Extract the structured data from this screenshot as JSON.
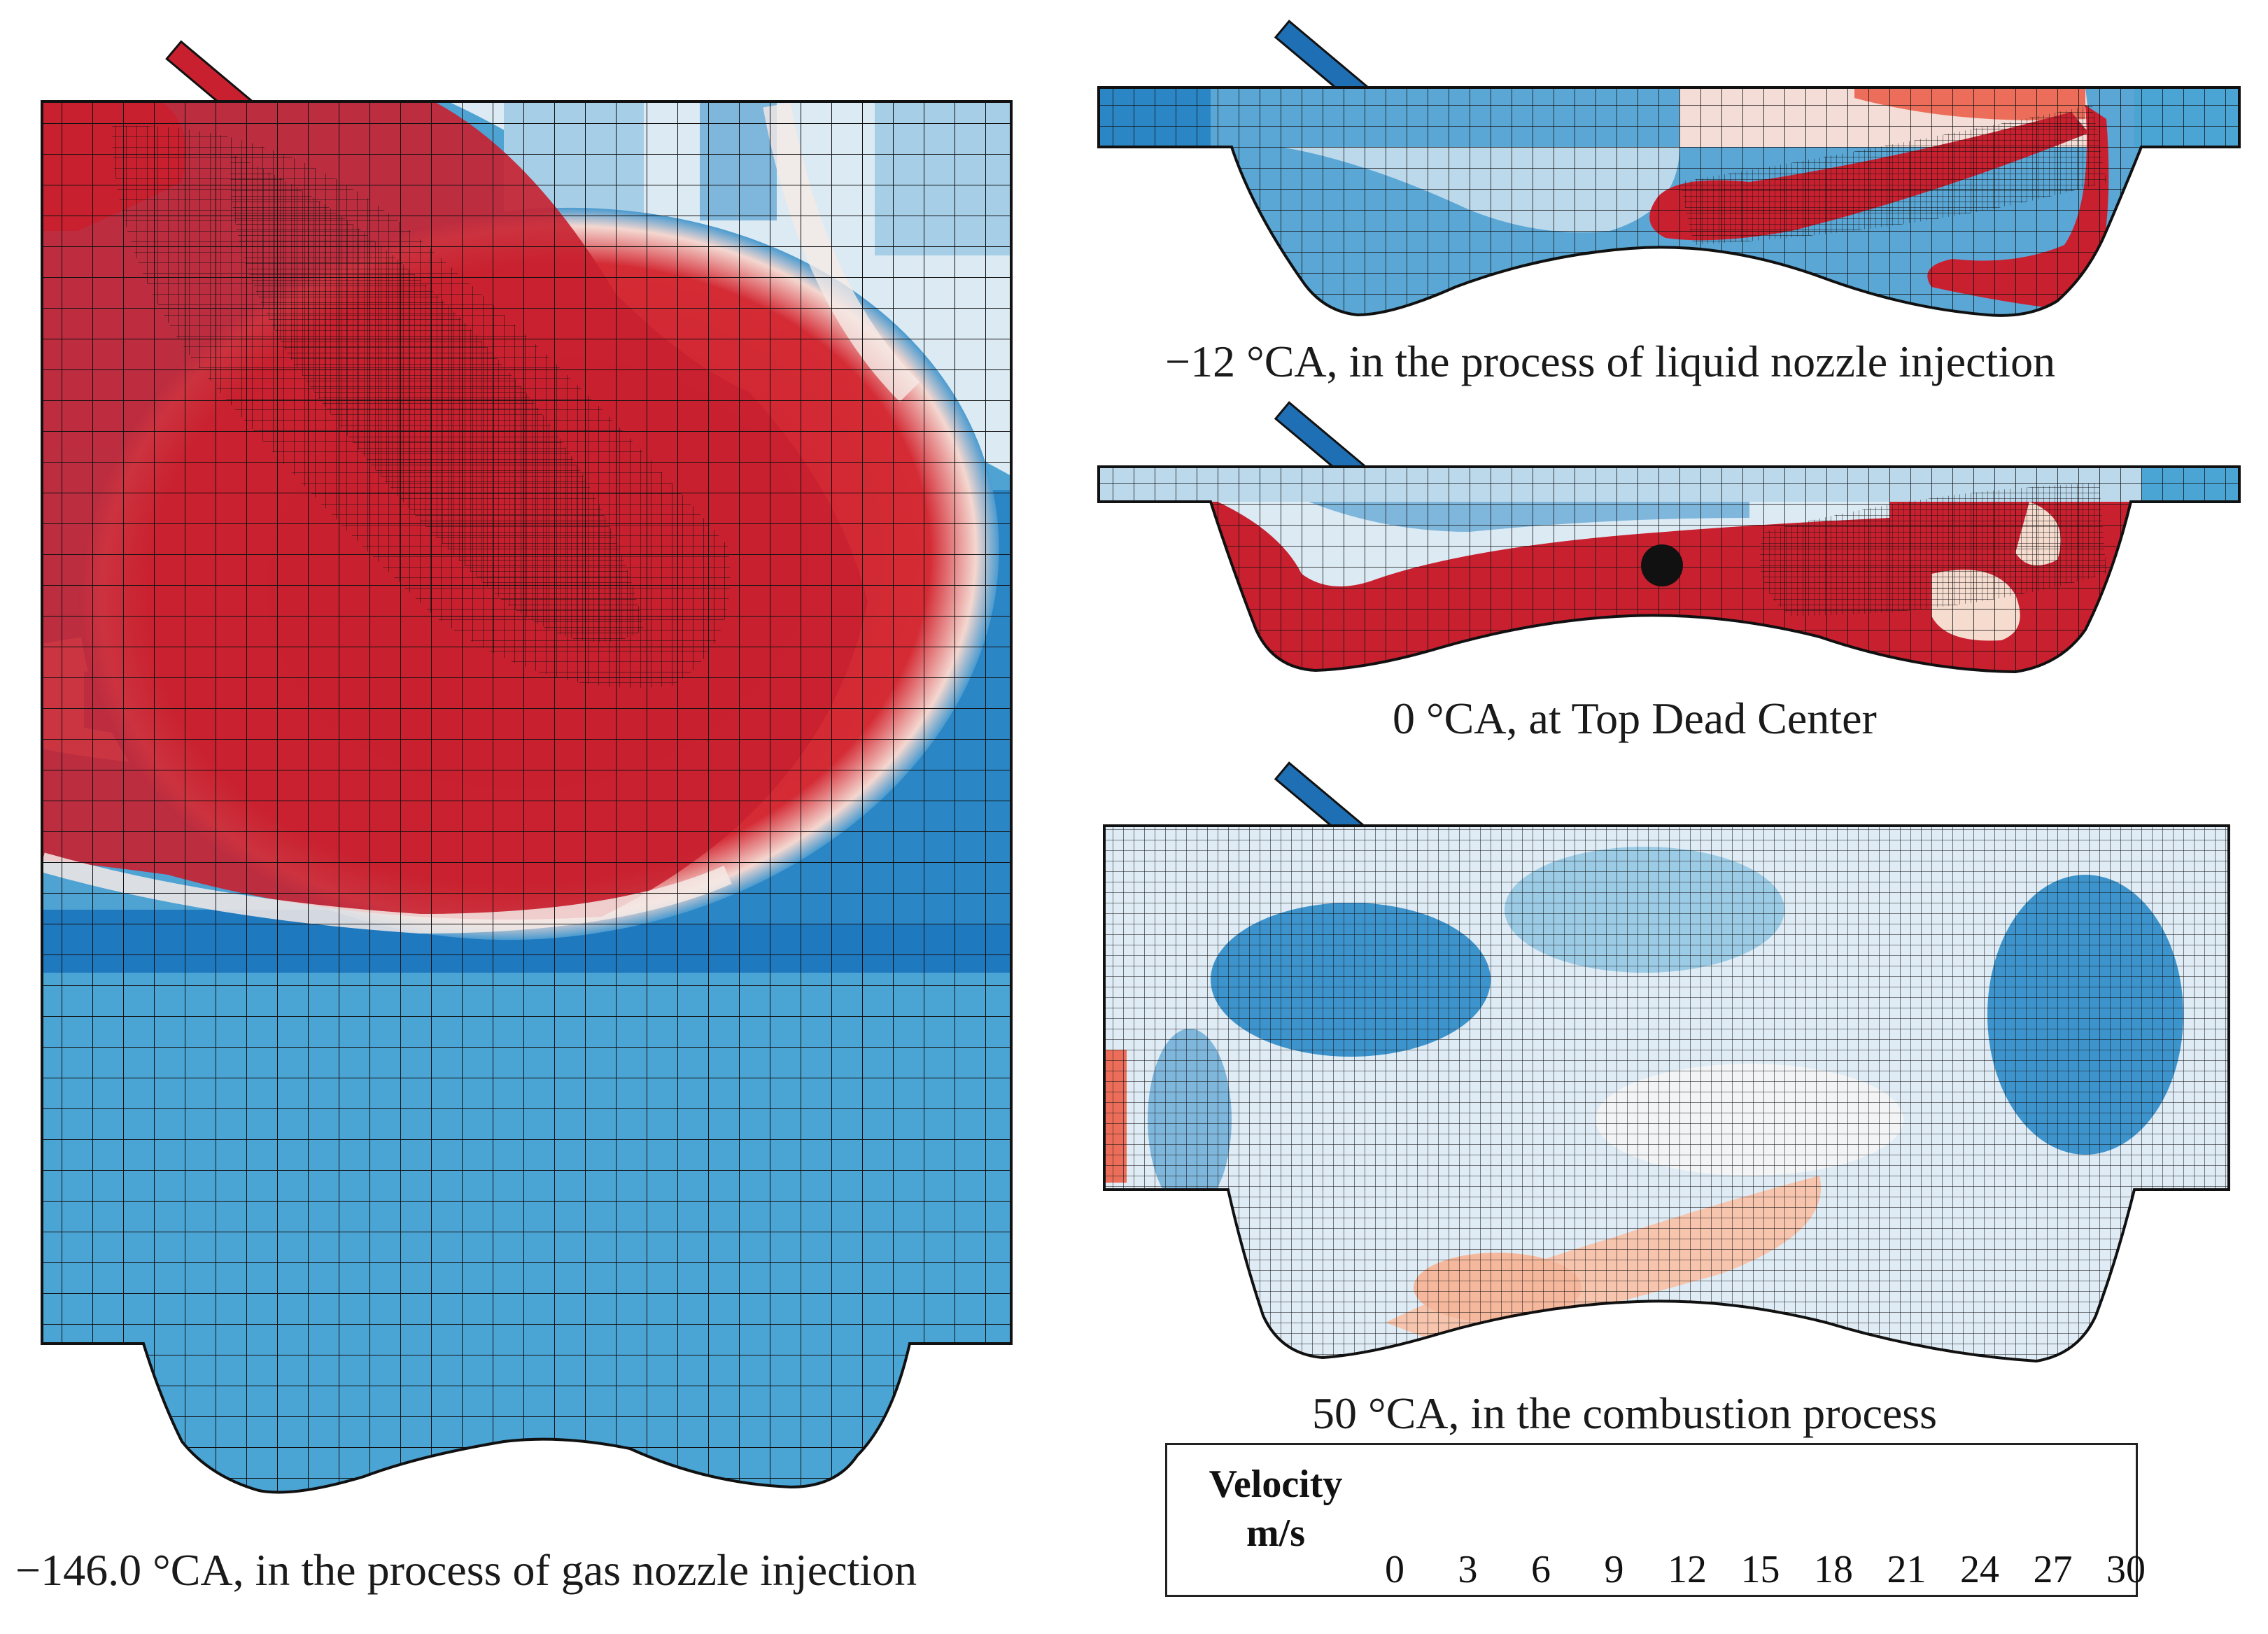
{
  "panels": {
    "gas_injection": {
      "caption": "−146.0 °CA, in the process of gas nozzle injection",
      "injector_color": "#c8202f"
    },
    "liquid_injection": {
      "caption": "−12 °CA, in the process of liquid nozzle injection",
      "injector_color": "#1f6fb5"
    },
    "top_dead_center": {
      "caption": "0 °CA, at Top Dead Center",
      "injector_color": "#1f6fb5"
    },
    "combustion": {
      "caption": "50 °CA, in the combustion process",
      "injector_color": "#1f6fb5"
    }
  },
  "legend": {
    "title_line1": "Velocity",
    "title_line2": "m/s",
    "ticks": [
      "0",
      "3",
      "6",
      "9",
      "12",
      "15",
      "18",
      "21",
      "24",
      "27",
      "30"
    ],
    "min": 0,
    "max": 30,
    "colors": [
      "#0b5ea8",
      "#2a84c3",
      "#5aa6d3",
      "#9ccbe5",
      "#d5e8f2",
      "#f7f3f0",
      "#fcd6c0",
      "#f7a78b",
      "#ec6e5a",
      "#d83a3c",
      "#c5122c"
    ]
  },
  "colors": {
    "high_velocity": "#c8202f",
    "low_velocity": "#1f6fb5",
    "mesh_line": "#111111"
  }
}
